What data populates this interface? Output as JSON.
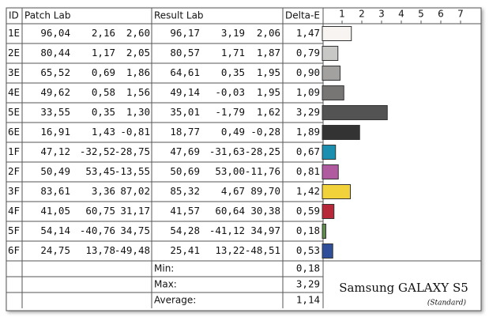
{
  "chart_data": {
    "type": "bar",
    "categories": [
      "1E",
      "2E",
      "3E",
      "4E",
      "5E",
      "6E",
      "1F",
      "2F",
      "3F",
      "4F",
      "5F",
      "6F"
    ],
    "values": [
      1.47,
      0.79,
      0.9,
      1.09,
      3.29,
      1.89,
      0.67,
      0.81,
      1.42,
      0.59,
      0.18,
      0.53
    ],
    "value_labels": [
      "1,47",
      "0,79",
      "0,90",
      "1,09",
      "3,29",
      "1,89",
      "0,67",
      "0,81",
      "1,42",
      "0,59",
      "0,18",
      "0,53"
    ],
    "colors": [
      "#f8f4f2",
      "#c8c8c6",
      "#a3a19f",
      "#787674",
      "#535353",
      "#333333",
      "#1b8fb0",
      "#b05aa0",
      "#f2d23b",
      "#b72838",
      "#5f8c4e",
      "#2f4f9a"
    ],
    "xlim": [
      0,
      8
    ],
    "xticks": [
      1,
      2,
      3,
      4,
      5,
      6,
      7
    ]
  },
  "table": {
    "columns": [
      "ID",
      "Patch Lab",
      "Result Lab",
      "Delta-E"
    ],
    "rows": [
      [
        "96,04",
        "2,16",
        "2,60",
        "96,17",
        "3,19",
        "2,06"
      ],
      [
        "80,44",
        "1,17",
        "2,05",
        "80,57",
        "1,71",
        "1,87"
      ],
      [
        "65,52",
        "0,69",
        "1,86",
        "64,61",
        "0,35",
        "1,95"
      ],
      [
        "49,62",
        "0,58",
        "1,56",
        "49,14",
        "-0,03",
        "1,95"
      ],
      [
        "33,55",
        "0,35",
        "1,30",
        "35,01",
        "-1,79",
        "1,62"
      ],
      [
        "16,91",
        "1,43",
        "-0,81",
        "18,77",
        "0,49",
        "-0,28"
      ],
      [
        "47,12",
        "-32,52",
        "-28,75",
        "47,69",
        "-31,63",
        "-28,25"
      ],
      [
        "50,49",
        "53,45",
        "-13,55",
        "50,69",
        "53,00",
        "-11,76"
      ],
      [
        "83,61",
        "3,36",
        "87,02",
        "85,32",
        "4,67",
        "89,70"
      ],
      [
        "41,05",
        "60,75",
        "31,17",
        "41,57",
        "60,64",
        "30,38"
      ],
      [
        "54,14",
        "-40,76",
        "34,75",
        "54,28",
        "-41,12",
        "34,97"
      ],
      [
        "24,75",
        "13,78",
        "-49,48",
        "25,41",
        "13,22",
        "-48,51"
      ]
    ],
    "summary": [
      {
        "label": "Min:",
        "value": "0,18"
      },
      {
        "label": "Max:",
        "value": "3,29"
      },
      {
        "label": "Average:",
        "value": "1,14"
      }
    ]
  },
  "brand": {
    "name": "Samsung GALAXY S5",
    "mode": "(Standard)"
  }
}
